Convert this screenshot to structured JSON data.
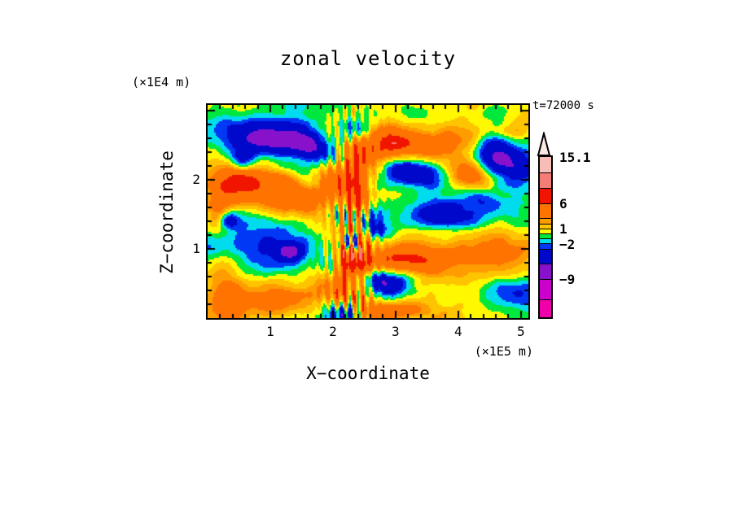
{
  "page": {
    "background": "#ffffff"
  },
  "chart_data": {
    "type": "heatmap",
    "subtype": "filled_contour",
    "title": "zonal velocity",
    "time_annotation": "t=72000 s",
    "x_axis": {
      "title": "X−coordinate",
      "units": "(×1E5 m)",
      "range": [
        0,
        5.12
      ],
      "major_ticks": [
        "1",
        "2",
        "3",
        "4",
        "5"
      ],
      "major_tick_values": [
        1,
        2,
        3,
        4,
        5
      ],
      "minor_step": 0.2
    },
    "z_axis": {
      "title": "Z−coordinate",
      "units": "(×1E4 m)",
      "range": [
        0,
        3.08
      ],
      "major_ticks": [
        "1",
        "2"
      ],
      "major_tick_values": [
        1,
        2
      ],
      "minor_step": 0.2
    },
    "levels": [
      -13,
      -9,
      -6,
      -3,
      -2,
      -1,
      0,
      1,
      2,
      3,
      6,
      9,
      12,
      15.1
    ],
    "band_colors": [
      "#F000A8",
      "#CC00CC",
      "#8812CC",
      "#0008CC",
      "#0038F5",
      "#00DCEE",
      "#00E83E",
      "#FFF800",
      "#FFC400",
      "#FF9C00",
      "#FF7300",
      "#F11500",
      "#F57D78",
      "#F8BDB6",
      "#FBE8E4"
    ],
    "colorbar": {
      "orientation": "vertical",
      "over_arrow": "up",
      "open_end_units": 3.5,
      "labels": [
        {
          "text": "15.1",
          "boundary_value": 15.1
        },
        {
          "text": "6",
          "boundary_value": 6
        },
        {
          "text": "1",
          "boundary_value": 1
        },
        {
          "text": "−2",
          "boundary_value": -2
        },
        {
          "text": "−9",
          "boundary_value": -9
        }
      ]
    },
    "field_model": {
      "comment": "approximation of the turbulent zonal-velocity field (m/s) at t=72000 s",
      "base": 0.4,
      "octaves": [
        {
          "lx": 0.95,
          "lz": 0.6,
          "amp": 1.5,
          "seed": 11
        },
        {
          "lx": 0.45,
          "lz": 0.28,
          "amp": 1.0,
          "seed": 23
        },
        {
          "lx": 0.22,
          "lz": 0.13,
          "amp": 0.55,
          "seed": 47
        }
      ],
      "blobs": [
        {
          "x": 0.95,
          "z": 2.6,
          "a": -7.5,
          "sx": 0.5,
          "sz": 0.17,
          "th": -8
        },
        {
          "x": 1.75,
          "z": 2.42,
          "a": -6.0,
          "sx": 0.3,
          "sz": 0.15,
          "th": -25
        },
        {
          "x": 0.55,
          "z": 2.28,
          "a": -5.0,
          "sx": 0.14,
          "sz": 0.12,
          "th": 0
        },
        {
          "x": 2.35,
          "z": 2.72,
          "a": -4.5,
          "sx": 0.18,
          "sz": 0.12,
          "th": 0
        },
        {
          "x": 0.45,
          "z": 1.95,
          "a": 6.5,
          "sx": 0.3,
          "sz": 0.2,
          "th": -15
        },
        {
          "x": 1.3,
          "z": 1.8,
          "a": 5.5,
          "sx": 0.45,
          "sz": 0.22,
          "th": -20
        },
        {
          "x": 2.1,
          "z": 2.05,
          "a": 6.0,
          "sx": 0.3,
          "sz": 0.25,
          "th": -35
        },
        {
          "x": 0.18,
          "z": 1.55,
          "a": 4.0,
          "sx": 0.15,
          "sz": 0.2,
          "th": 0
        },
        {
          "x": 1.6,
          "z": 2.02,
          "a": -2.5,
          "sx": 0.25,
          "sz": 0.1,
          "th": -25
        },
        {
          "x": 3.1,
          "z": 2.52,
          "a": 7.0,
          "sx": 0.45,
          "sz": 0.16,
          "th": -5
        },
        {
          "x": 3.0,
          "z": 2.52,
          "a": 2.2,
          "sx": 0.1,
          "sz": 0.05,
          "th": 0
        },
        {
          "x": 2.62,
          "z": 2.3,
          "a": 3.0,
          "sx": 0.2,
          "sz": 0.15,
          "th": 0
        },
        {
          "x": 3.3,
          "z": 2.08,
          "a": -6.5,
          "sx": 0.32,
          "sz": 0.14,
          "th": -10
        },
        {
          "x": 4.62,
          "z": 2.32,
          "a": -7.0,
          "sx": 0.33,
          "sz": 0.18,
          "th": -12
        },
        {
          "x": 4.05,
          "z": 2.65,
          "a": 3.5,
          "sx": 0.3,
          "sz": 0.15,
          "th": 0
        },
        {
          "x": 4.95,
          "z": 2.72,
          "a": 3.0,
          "sx": 0.2,
          "sz": 0.15,
          "th": 0
        },
        {
          "x": 4.2,
          "z": 2.0,
          "a": 3.5,
          "sx": 0.25,
          "sz": 0.2,
          "th": -30
        },
        {
          "x": 3.75,
          "z": 1.5,
          "a": -6.5,
          "sx": 0.5,
          "sz": 0.18,
          "th": -4
        },
        {
          "x": 4.35,
          "z": 1.72,
          "a": -4.0,
          "sx": 0.25,
          "sz": 0.12,
          "th": -20
        },
        {
          "x": 2.62,
          "z": 1.33,
          "a": -6.0,
          "sx": 0.28,
          "sz": 0.13,
          "th": -20
        },
        {
          "x": 2.3,
          "z": 1.12,
          "a": -9.5,
          "sx": 0.09,
          "sz": 0.07,
          "th": 0
        },
        {
          "x": 0.9,
          "z": 1.15,
          "a": -2.6,
          "sx": 0.8,
          "sz": 0.33,
          "th": -5
        },
        {
          "x": 1.32,
          "z": 0.95,
          "a": -5.0,
          "sx": 0.14,
          "sz": 0.09,
          "th": 0
        },
        {
          "x": 0.33,
          "z": 1.42,
          "a": -5.0,
          "sx": 0.1,
          "sz": 0.09,
          "th": 0
        },
        {
          "x": 0.28,
          "z": 0.4,
          "a": 4.5,
          "sx": 0.22,
          "sz": 0.28,
          "th": 0
        },
        {
          "x": 0.85,
          "z": 0.3,
          "a": 2.0,
          "sx": 0.5,
          "sz": 0.2,
          "th": 0
        },
        {
          "x": 1.8,
          "z": 0.25,
          "a": 1.2,
          "sx": 0.8,
          "sz": 0.25,
          "th": 0
        },
        {
          "x": 3.2,
          "z": 0.85,
          "a": 6.5,
          "sx": 0.42,
          "sz": 0.22,
          "th": -8
        },
        {
          "x": 3.05,
          "z": 0.5,
          "a": -6.0,
          "sx": 0.3,
          "sz": 0.15,
          "th": 8
        },
        {
          "x": 2.7,
          "z": 0.55,
          "a": -5.0,
          "sx": 0.22,
          "sz": 0.12,
          "th": 0
        },
        {
          "x": 4.55,
          "z": 0.95,
          "a": 4.0,
          "sx": 0.55,
          "sz": 0.25,
          "th": -5
        },
        {
          "x": 5.0,
          "z": 0.35,
          "a": -2.2,
          "sx": 0.35,
          "sz": 0.12,
          "th": 0
        },
        {
          "x": 2.15,
          "z": 0.07,
          "a": -7.0,
          "sx": 0.22,
          "sz": 0.1,
          "th": 0
        },
        {
          "x": 2.9,
          "z": 0.1,
          "a": 5.0,
          "sx": 0.4,
          "sz": 0.1,
          "th": 0
        },
        {
          "x": 2.42,
          "z": 1.45,
          "a": 5.5,
          "sx": 0.12,
          "sz": 0.9,
          "th": 3
        },
        {
          "x": 2.2,
          "z": 0.85,
          "a": 4.5,
          "sx": 0.1,
          "sz": 0.5,
          "th": -6
        }
      ],
      "column": {
        "x0": 2.32,
        "z0": 1.25,
        "sx": 0.28,
        "sz": 1.05,
        "amp": 6,
        "wavelength": 0.14,
        "ztwist": 2.5,
        "seed": 71
      }
    }
  }
}
